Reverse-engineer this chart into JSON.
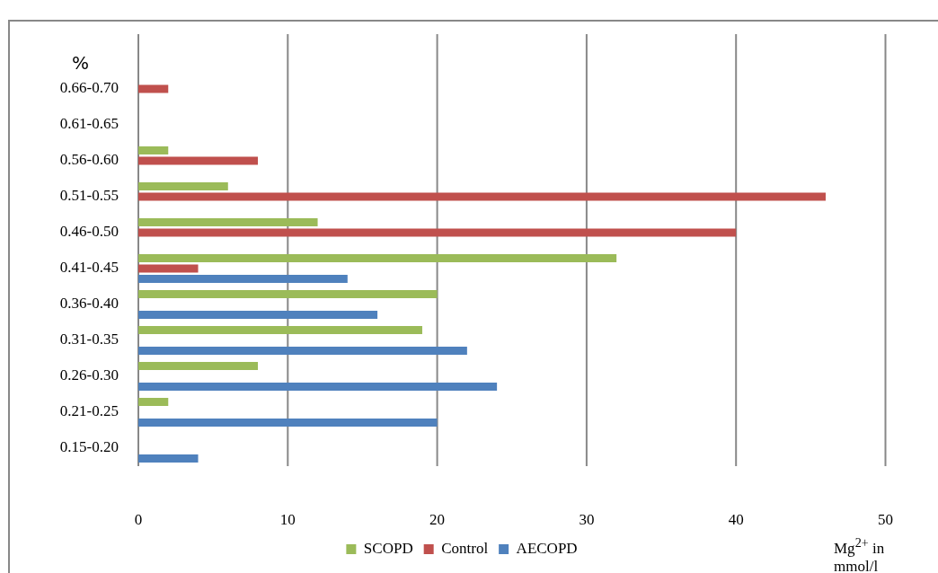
{
  "chart_data": {
    "type": "bar",
    "orientation": "horizontal",
    "xlabel": "Mg$^{2+}$ in mmol/l",
    "ylabel": "%",
    "categories": [
      "0.66-0.70",
      "0.61-0.65",
      "0.56-0.60",
      "0.51-0.55",
      "0.46-0.50",
      "0.41-0.45",
      "0.36-0.40",
      "0.31-0.35",
      "0.26-0.30",
      "0.21-0.25",
      "0.15-0.20"
    ],
    "series": [
      {
        "name": "SCOPD",
        "color": "#9bbb59",
        "values": [
          0,
          0,
          2,
          6,
          12,
          32,
          20,
          19,
          8,
          2,
          0
        ]
      },
      {
        "name": "Control",
        "color": "#c0504d",
        "values": [
          2,
          0,
          8,
          46,
          40,
          4,
          0,
          0,
          0,
          0,
          0
        ]
      },
      {
        "name": "AECOPD",
        "color": "#4f81bd",
        "values": [
          0,
          0,
          0,
          0,
          0,
          14,
          16,
          22,
          24,
          20,
          4
        ]
      }
    ],
    "xlim": [
      0,
      50
    ],
    "xticks": [
      0,
      10,
      20,
      30,
      40,
      50
    ],
    "grid": "x",
    "legend": "bottom"
  }
}
